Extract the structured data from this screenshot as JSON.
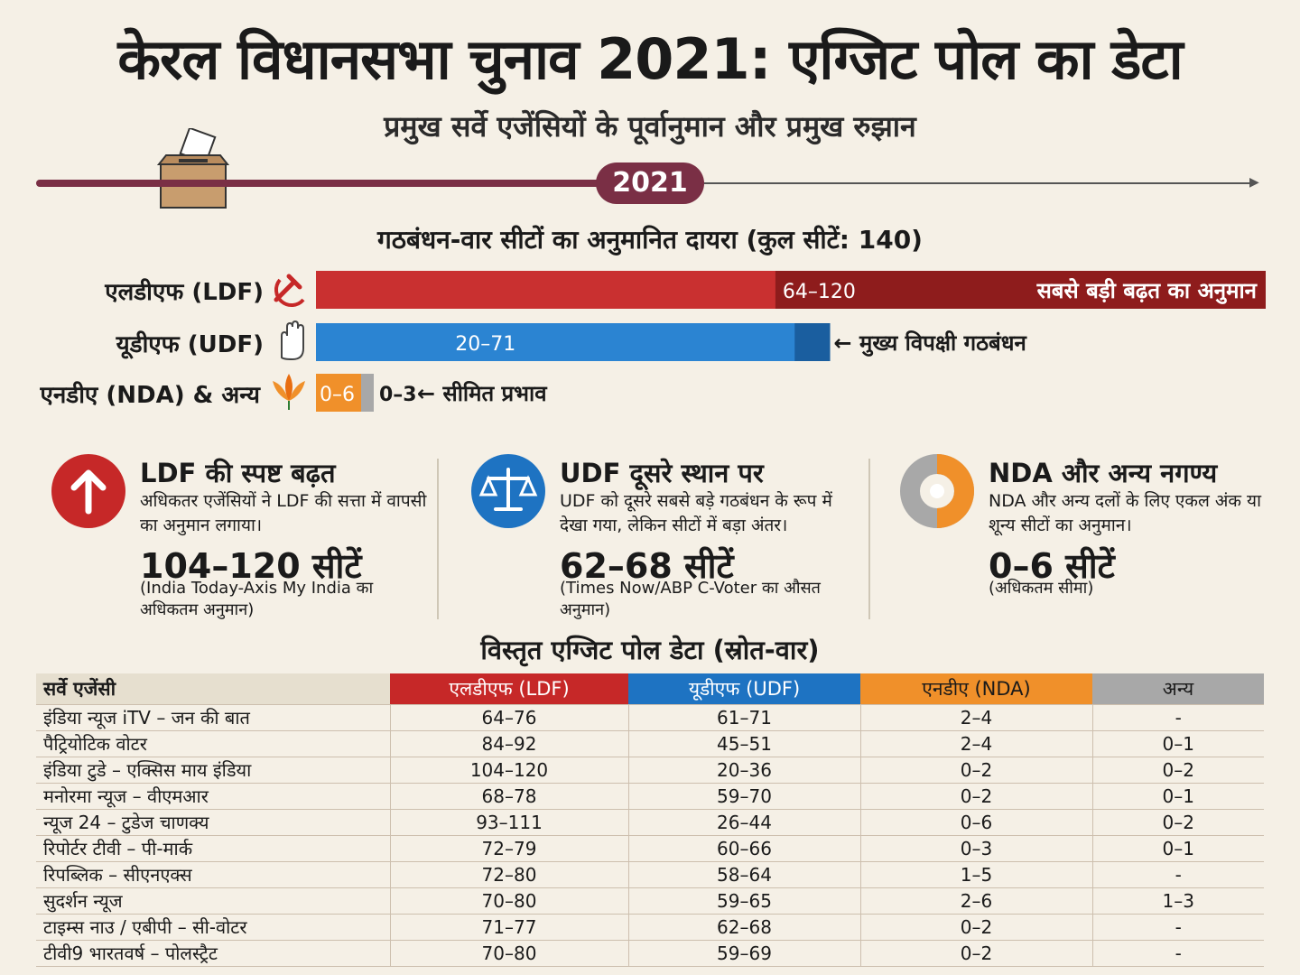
{
  "header": {
    "title": "केरल विधानसभा चुनाव 2021: एग्जिट पोल का डेटा",
    "subtitle": "प्रमुख सर्वे एजेंसियों के पूर्वानुमान और प्रमुख रुझान",
    "year": "2021"
  },
  "chart_data": {
    "type": "bar",
    "title": "गठबंधन-वार सीटों का अनुमानित दायरा (कुल सीटें: 140)",
    "total_seats": 140,
    "xlim": [
      0,
      140
    ],
    "categories": [
      "एलडीएफ (LDF)",
      "यूडीएफ (UDF)",
      "एनडीए (NDA) & अन्य"
    ],
    "series": [
      {
        "name": "LDF",
        "range": [
          64,
          120
        ],
        "label": "64–120",
        "annotation": "सबसे बड़ी बढ़त का अनुमान",
        "color": "#b52525"
      },
      {
        "name": "UDF",
        "range": [
          20,
          71
        ],
        "label": "20–71",
        "annotation": "← मुख्य विपक्षी गठबंधन",
        "color": "#1e73c2"
      },
      {
        "name": "NDA",
        "range": [
          0,
          6
        ],
        "label": "0–6",
        "color": "#f0902a"
      },
      {
        "name": "अन्य",
        "range": [
          0,
          3
        ],
        "label": "0–3",
        "annotation": "← सीमित प्रभाव",
        "color": "#a8a8a8"
      }
    ]
  },
  "cards": [
    {
      "icon": "arrow-up-icon",
      "title": "LDF की स्पष्ट बढ़त",
      "desc": "अधिकतर एजेंसियों ने LDF की सत्ता में वापसी का अनुमान लगाया।",
      "big": "104–120 सीटें",
      "note": "(India Today-Axis My India का अधिकतम अनुमान)",
      "color": "#c62828"
    },
    {
      "icon": "scales-icon",
      "title": "UDF दूसरे स्थान पर",
      "desc": "UDF को दूसरे सबसे बड़े गठबंधन के रूप में देखा गया, लेकिन सीटों में बड़ा अंतर।",
      "big": "62–68 सीटें",
      "note": "(Times Now/ABP C-Voter का औसत अनुमान)",
      "color": "#1e73c2"
    },
    {
      "icon": "donut-icon",
      "title": "NDA और अन्य नगण्य",
      "desc": "NDA और अन्य दलों के लिए एकल अंक या शून्य सीटों का अनुमान।",
      "big": "0–6 सीटें",
      "note": "(अधिकतम सीमा)",
      "color": "#f0902a"
    }
  ],
  "table": {
    "title": "विस्तृत एग्जिट पोल डेटा (स्रोत-वार)",
    "headers": [
      "सर्वे एजेंसी",
      "एलडीएफ (LDF)",
      "यूडीएफ (UDF)",
      "एनडीए (NDA)",
      "अन्य"
    ],
    "rows": [
      [
        "इंडिया न्यूज iTV – जन की बात",
        "64–76",
        "61–71",
        "2–4",
        "-"
      ],
      [
        "पैट्रियोटिक वोटर",
        "84–92",
        "45–51",
        "2–4",
        "0–1"
      ],
      [
        "इंडिया टुडे – एक्सिस माय इंडिया",
        "104–120",
        "20–36",
        "0–2",
        "0–2"
      ],
      [
        "मनोरमा न्यूज – वीएमआर",
        "68–78",
        "59–70",
        "0–2",
        "0–1"
      ],
      [
        "न्यूज 24 – टुडेज चाणक्य",
        "93–111",
        "26–44",
        "0–6",
        "0–2"
      ],
      [
        "रिपोर्टर टीवी – पी-मार्क",
        "72–79",
        "60–66",
        "0–3",
        "0–1"
      ],
      [
        "रिपब्लिक – सीएनएक्स",
        "72–80",
        "58–64",
        "1–5",
        "-"
      ],
      [
        "सुदर्शन न्यूज",
        "70–80",
        "59–65",
        "2–6",
        "1–3"
      ],
      [
        "टाइम्स नाउ / एबीपी – सी-वोटर",
        "71–77",
        "62–68",
        "0–2",
        "-"
      ],
      [
        "टीवी9 भारतवर्ष – पोलस्ट्रैट",
        "70–80",
        "59–69",
        "0–2",
        "-"
      ]
    ]
  }
}
